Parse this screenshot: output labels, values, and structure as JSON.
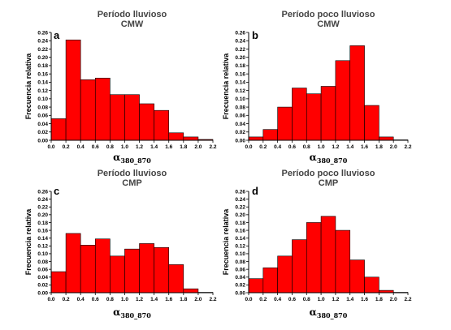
{
  "style": {
    "bar_fill": "#ff0000",
    "bar_stroke": "#000000",
    "axis_color": "#000000"
  },
  "chart_data": [
    {
      "type": "bar",
      "label": "a",
      "title_line1": "Período lluvioso",
      "title_line2": "CMW",
      "ylabel": "Frecuencia relativa",
      "xlabel_main": "α",
      "xlabel_sub": "380_870",
      "bin_width": 0.2,
      "x": [
        0.1,
        0.3,
        0.5,
        0.7,
        0.9,
        1.1,
        1.3,
        1.5,
        1.7,
        1.9,
        2.1
      ],
      "values": [
        0.052,
        0.242,
        0.146,
        0.15,
        0.11,
        0.11,
        0.088,
        0.072,
        0.018,
        0.008,
        0.002
      ],
      "xlim": [
        0.0,
        2.2
      ],
      "ylim": [
        0.0,
        0.26
      ],
      "xticks": [
        "0.0",
        "0.2",
        "0.4",
        "0.6",
        "0.8",
        "1.0",
        "1.2",
        "1.4",
        "1.6",
        "1.8",
        "2.0",
        "2.2"
      ],
      "yticks": [
        "0.00",
        "0.02",
        "0.04",
        "0.06",
        "0.08",
        "0.10",
        "0.12",
        "0.14",
        "0.16",
        "0.18",
        "0.20",
        "0.22",
        "0.24",
        "0.26"
      ]
    },
    {
      "type": "bar",
      "label": "b",
      "title_line1": "Período poco lluvioso",
      "title_line2": "CMW",
      "ylabel": "Frecuencia relativa",
      "xlabel_main": "α",
      "xlabel_sub": "380_870",
      "bin_width": 0.2,
      "x": [
        0.1,
        0.3,
        0.5,
        0.7,
        0.9,
        1.1,
        1.3,
        1.5,
        1.7,
        1.9,
        2.1
      ],
      "values": [
        0.008,
        0.026,
        0.08,
        0.126,
        0.112,
        0.13,
        0.192,
        0.228,
        0.084,
        0.008,
        0.001
      ],
      "xlim": [
        0.0,
        2.2
      ],
      "ylim": [
        0.0,
        0.26
      ],
      "xticks": [
        "0.0",
        "0.2",
        "0.4",
        "0.6",
        "0.8",
        "1.0",
        "1.2",
        "1.4",
        "1.6",
        "1.8",
        "2.0",
        "2.2"
      ],
      "yticks": [
        "0.00",
        "0.02",
        "0.04",
        "0.06",
        "0.08",
        "0.10",
        "0.12",
        "0.14",
        "0.16",
        "0.18",
        "0.20",
        "0.22",
        "0.24",
        "0.26"
      ]
    },
    {
      "type": "bar",
      "label": "c",
      "title_line1": "Período lluvioso",
      "title_line2": "CMP",
      "ylabel": "Frecuencia relativa",
      "xlabel_main": "α",
      "xlabel_sub": "380_870",
      "bin_width": 0.2,
      "x": [
        0.1,
        0.3,
        0.5,
        0.7,
        0.9,
        1.1,
        1.3,
        1.5,
        1.7,
        1.9,
        2.1
      ],
      "values": [
        0.054,
        0.152,
        0.122,
        0.138,
        0.094,
        0.112,
        0.126,
        0.116,
        0.072,
        0.01,
        0.001
      ],
      "xlim": [
        0.0,
        2.2
      ],
      "ylim": [
        0.0,
        0.26
      ],
      "xticks": [
        "0.0",
        "0.2",
        "0.4",
        "0.6",
        "0.8",
        "1.0",
        "1.2",
        "1.4",
        "1.6",
        "1.8",
        "2.0",
        "2.2"
      ],
      "yticks": [
        "0.00",
        "0.02",
        "0.04",
        "0.06",
        "0.08",
        "0.10",
        "0.12",
        "0.14",
        "0.16",
        "0.18",
        "0.20",
        "0.22",
        "0.24",
        "0.26"
      ]
    },
    {
      "type": "bar",
      "label": "d",
      "title_line1": "Período poco lluvioso",
      "title_line2": "CMP",
      "ylabel": "Frecuencia relativa",
      "xlabel_main": "α",
      "xlabel_sub": "380_870",
      "bin_width": 0.2,
      "x": [
        0.1,
        0.3,
        0.5,
        0.7,
        0.9,
        1.1,
        1.3,
        1.5,
        1.7,
        1.9,
        2.1
      ],
      "values": [
        0.036,
        0.064,
        0.094,
        0.136,
        0.18,
        0.196,
        0.16,
        0.084,
        0.04,
        0.006,
        0.001
      ],
      "xlim": [
        0.0,
        2.2
      ],
      "ylim": [
        0.0,
        0.26
      ],
      "xticks": [
        "0.0",
        "0.2",
        "0.4",
        "0.6",
        "0.8",
        "1.0",
        "1.2",
        "1.4",
        "1.6",
        "1.8",
        "2.0",
        "2.2"
      ],
      "yticks": [
        "0.00",
        "0.02",
        "0.04",
        "0.06",
        "0.08",
        "0.10",
        "0.12",
        "0.14",
        "0.16",
        "0.18",
        "0.20",
        "0.22",
        "0.24",
        "0.26"
      ]
    }
  ]
}
